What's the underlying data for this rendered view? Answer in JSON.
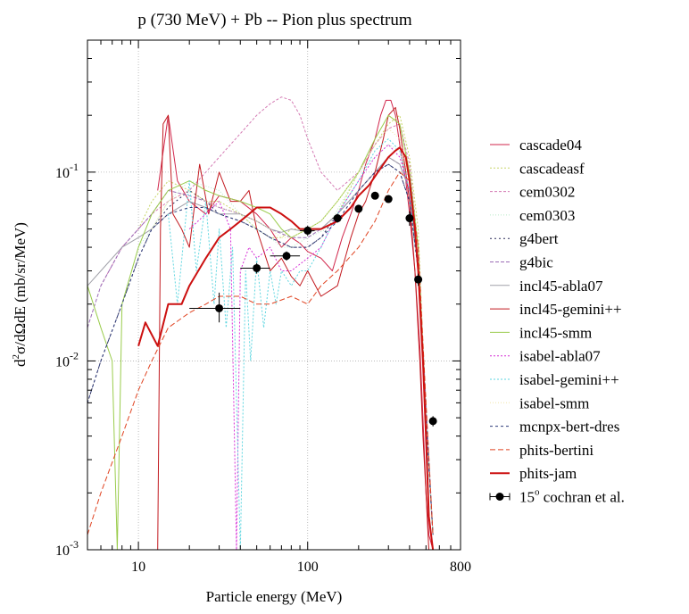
{
  "chart_data": {
    "type": "line",
    "title": "p (730 MeV) + Pb -- Pion plus spectrum",
    "xlabel": "Particle energy (MeV)",
    "ylabel_parts": {
      "base": "d",
      "exp": "2",
      "rest": "σ/dΩdE (mb/sr/MeV)"
    },
    "xscale": "log",
    "yscale": "log",
    "xlim": [
      5,
      800
    ],
    "ylim": [
      0.001,
      0.5
    ],
    "x_ticks": [
      {
        "value": 10,
        "label": "10"
      },
      {
        "value": 100,
        "label": "100"
      },
      {
        "value": 800,
        "label": "800"
      }
    ],
    "y_ticks": [
      {
        "value": 0.001,
        "base": "10",
        "exp": "-3"
      },
      {
        "value": 0.01,
        "base": "10",
        "exp": "-2"
      },
      {
        "value": 0.1,
        "base": "10",
        "exp": "-1"
      }
    ],
    "grid": true,
    "legend_position": "outside-right",
    "series": [
      {
        "name": "cascade04",
        "color": "#d1264b",
        "width": 1,
        "dash": "",
        "x": [
          13,
          15,
          17,
          20,
          25,
          30,
          40,
          50,
          60,
          70,
          80,
          90,
          100,
          120,
          140,
          160,
          180,
          200,
          220,
          250,
          270,
          290,
          310,
          330,
          350,
          380,
          400,
          430,
          460,
          480,
          500,
          520,
          550
        ],
        "y": [
          0.08,
          0.2,
          0.09,
          0.07,
          0.06,
          0.075,
          0.07,
          0.06,
          0.05,
          0.04,
          0.045,
          0.042,
          0.038,
          0.035,
          0.03,
          0.045,
          0.06,
          0.08,
          0.11,
          0.15,
          0.2,
          0.24,
          0.24,
          0.2,
          0.14,
          0.09,
          0.06,
          0.03,
          0.012,
          0.005,
          0.002,
          0.0012,
          0.001
        ]
      },
      {
        "name": "cascadeasf",
        "color": "#c8d66a",
        "width": 1,
        "dash": "2,2",
        "x": [
          10,
          12,
          15,
          20,
          25,
          30,
          40,
          50,
          60,
          70,
          80,
          100,
          120,
          150,
          200,
          250,
          300,
          350,
          400,
          450,
          500,
          550
        ],
        "y": [
          0.05,
          0.07,
          0.09,
          0.08,
          0.07,
          0.07,
          0.06,
          0.05,
          0.045,
          0.045,
          0.05,
          0.05,
          0.05,
          0.06,
          0.1,
          0.14,
          0.18,
          0.2,
          0.12,
          0.05,
          0.005,
          0.0012
        ]
      },
      {
        "name": "cem0302",
        "color": "#d47ab3",
        "width": 1,
        "dash": "3,2",
        "x": [
          6,
          8,
          10,
          12,
          15,
          20,
          25,
          30,
          40,
          50,
          60,
          70,
          80,
          90,
          100,
          120,
          150,
          200,
          250,
          300,
          350,
          400,
          450,
          500,
          550
        ],
        "y": [
          0.025,
          0.04,
          0.05,
          0.06,
          0.07,
          0.08,
          0.1,
          0.12,
          0.16,
          0.2,
          0.23,
          0.25,
          0.24,
          0.2,
          0.15,
          0.1,
          0.08,
          0.1,
          0.14,
          0.17,
          0.18,
          0.11,
          0.04,
          0.005,
          0.0012
        ]
      },
      {
        "name": "cem0303",
        "color": "#b8eac8",
        "width": 1,
        "dash": "1,2",
        "x": [
          8,
          10,
          12,
          15,
          20,
          30,
          40,
          50,
          60,
          70,
          80,
          100,
          130,
          160,
          200,
          250,
          300,
          350,
          400,
          450,
          500,
          550
        ],
        "y": [
          0.02,
          0.04,
          0.05,
          0.07,
          0.09,
          0.08,
          0.06,
          0.05,
          0.045,
          0.04,
          0.04,
          0.045,
          0.05,
          0.07,
          0.1,
          0.12,
          0.14,
          0.13,
          0.09,
          0.04,
          0.006,
          0.0012
        ]
      },
      {
        "name": "g4bert",
        "color": "#2c2c5a",
        "width": 1,
        "dash": "2,3",
        "x": [
          5,
          6,
          8,
          10,
          12,
          15,
          20,
          25,
          30,
          40,
          50,
          60,
          80,
          100,
          120,
          150,
          200,
          250,
          300,
          350,
          400,
          450,
          500,
          550
        ],
        "y": [
          0.006,
          0.01,
          0.02,
          0.035,
          0.05,
          0.065,
          0.08,
          0.07,
          0.06,
          0.055,
          0.05,
          0.045,
          0.04,
          0.04,
          0.045,
          0.06,
          0.08,
          0.1,
          0.11,
          0.1,
          0.07,
          0.03,
          0.005,
          0.0012
        ]
      },
      {
        "name": "g4bic",
        "color": "#9b6bb6",
        "width": 1,
        "dash": "4,2",
        "x": [
          5,
          6,
          8,
          10,
          12,
          15,
          20,
          25,
          30,
          40,
          50,
          60,
          80,
          100,
          120,
          150,
          200,
          250,
          300,
          350,
          400,
          450,
          500,
          550
        ],
        "y": [
          0.015,
          0.025,
          0.04,
          0.05,
          0.06,
          0.08,
          0.075,
          0.07,
          0.065,
          0.06,
          0.055,
          0.05,
          0.045,
          0.045,
          0.05,
          0.06,
          0.08,
          0.1,
          0.12,
          0.11,
          0.08,
          0.035,
          0.006,
          0.0012
        ]
      },
      {
        "name": "incl45-abla07",
        "color": "#a0a0a8",
        "width": 1,
        "dash": "",
        "x": [
          5,
          6,
          8,
          10,
          12,
          15,
          20,
          25,
          30,
          40,
          50,
          60,
          70,
          80,
          100,
          120,
          150,
          200,
          250,
          300,
          350,
          400,
          450,
          500,
          550
        ],
        "y": [
          0.025,
          0.03,
          0.04,
          0.045,
          0.05,
          0.06,
          0.07,
          0.065,
          0.06,
          0.06,
          0.055,
          0.05,
          0.048,
          0.05,
          0.048,
          0.05,
          0.06,
          0.08,
          0.1,
          0.12,
          0.11,
          0.08,
          0.03,
          0.005,
          0.0012
        ]
      },
      {
        "name": "incl45-gemini++",
        "color": "#c2191f",
        "width": 1,
        "dash": "",
        "x": [
          13,
          13.5,
          14,
          15,
          16,
          18,
          20,
          23,
          26,
          30,
          35,
          40,
          45,
          50,
          60,
          70,
          80,
          90,
          100,
          120,
          150,
          180,
          200,
          220,
          250,
          280,
          300,
          330,
          350,
          380,
          400,
          430,
          460,
          480,
          500,
          520,
          550
        ],
        "y": [
          0.001,
          0.05,
          0.18,
          0.2,
          0.06,
          0.05,
          0.04,
          0.11,
          0.06,
          0.1,
          0.07,
          0.07,
          0.08,
          0.05,
          0.03,
          0.035,
          0.028,
          0.025,
          0.03,
          0.022,
          0.025,
          0.045,
          0.06,
          0.07,
          0.1,
          0.15,
          0.2,
          0.22,
          0.17,
          0.1,
          0.07,
          0.03,
          0.01,
          0.004,
          0.002,
          0.001,
          0.001
        ]
      },
      {
        "name": "incl45-smm",
        "color": "#9acc4c",
        "width": 1,
        "dash": "",
        "x": [
          5,
          6,
          7,
          7.5,
          8,
          10,
          12,
          15,
          20,
          25,
          30,
          40,
          50,
          60,
          70,
          80,
          100,
          120,
          150,
          200,
          250,
          300,
          350,
          400,
          450,
          500,
          550
        ],
        "y": [
          0.025,
          0.015,
          0.01,
          0.001,
          0.02,
          0.04,
          0.06,
          0.08,
          0.09,
          0.08,
          0.075,
          0.07,
          0.065,
          0.06,
          0.05,
          0.045,
          0.05,
          0.055,
          0.07,
          0.1,
          0.15,
          0.2,
          0.18,
          0.1,
          0.04,
          0.005,
          0.0012
        ]
      },
      {
        "name": "isabel-abla07",
        "color": "#d62ed6",
        "width": 1,
        "dash": "2,2",
        "x": [
          20,
          25,
          30,
          35,
          38,
          40,
          45,
          50,
          60,
          70,
          80,
          100,
          120,
          150,
          200,
          250,
          300,
          350,
          400,
          450,
          500,
          550
        ],
        "y": [
          0.05,
          0.06,
          0.07,
          0.05,
          0.001,
          0.03,
          0.04,
          0.035,
          0.04,
          0.03,
          0.03,
          0.035,
          0.04,
          0.06,
          0.09,
          0.12,
          0.14,
          0.12,
          0.08,
          0.035,
          0.005,
          0.0012
        ]
      },
      {
        "name": "isabel-gemini++",
        "color": "#5ed6e0",
        "width": 1,
        "dash": "2,2",
        "x": [
          15,
          17,
          20,
          22,
          25,
          28,
          30,
          33,
          36,
          40,
          43,
          46,
          50,
          55,
          60,
          65,
          70,
          80,
          90,
          100,
          120,
          150,
          200,
          250,
          300,
          350,
          400,
          450,
          500,
          550
        ],
        "y": [
          0.06,
          0.02,
          0.09,
          0.03,
          0.07,
          0.02,
          0.05,
          0.015,
          0.04,
          0.001,
          0.03,
          0.01,
          0.035,
          0.015,
          0.03,
          0.02,
          0.03,
          0.025,
          0.03,
          0.03,
          0.04,
          0.06,
          0.09,
          0.13,
          0.15,
          0.13,
          0.08,
          0.03,
          0.005,
          0.0012
        ]
      },
      {
        "name": "isabel-smm",
        "color": "#f2e6a8",
        "width": 1,
        "dash": "1,2",
        "x": [
          12,
          15,
          20,
          25,
          30,
          40,
          50,
          60,
          70,
          80,
          100,
          120,
          150,
          200,
          250,
          300,
          350,
          400,
          450,
          500,
          550
        ],
        "y": [
          0.05,
          0.07,
          0.08,
          0.07,
          0.065,
          0.06,
          0.055,
          0.05,
          0.045,
          0.045,
          0.05,
          0.055,
          0.07,
          0.1,
          0.14,
          0.17,
          0.15,
          0.09,
          0.035,
          0.005,
          0.0012
        ]
      },
      {
        "name": "mcnpx-bert-dres",
        "color": "#2d3a7a",
        "width": 1,
        "dash": "3,3",
        "x": [
          5,
          6,
          8,
          10,
          12,
          15,
          20,
          25,
          30,
          40,
          50,
          60,
          80,
          100,
          120,
          150,
          200,
          250,
          300,
          350,
          400,
          450,
          500,
          550
        ],
        "y": [
          0.006,
          0.01,
          0.02,
          0.035,
          0.05,
          0.06,
          0.065,
          0.065,
          0.06,
          0.055,
          0.05,
          0.045,
          0.04,
          0.04,
          0.045,
          0.055,
          0.08,
          0.1,
          0.11,
          0.1,
          0.07,
          0.03,
          0.005,
          0.0012
        ]
      },
      {
        "name": "phits-bertini",
        "color": "#e04422",
        "width": 1,
        "dash": "6,3",
        "x": [
          5,
          6,
          8,
          10,
          12,
          15,
          20,
          25,
          30,
          40,
          50,
          60,
          80,
          100,
          120,
          150,
          200,
          250,
          300,
          350,
          400,
          450,
          500,
          550
        ],
        "y": [
          0.0012,
          0.002,
          0.004,
          0.007,
          0.01,
          0.015,
          0.018,
          0.02,
          0.022,
          0.022,
          0.02,
          0.02,
          0.022,
          0.02,
          0.025,
          0.03,
          0.04,
          0.055,
          0.08,
          0.1,
          0.09,
          0.04,
          0.006,
          0.0012
        ]
      },
      {
        "name": "phits-jam",
        "color": "#cc1010",
        "width": 2,
        "dash": "",
        "x": [
          10,
          11,
          13,
          15,
          18,
          20,
          25,
          30,
          35,
          40,
          45,
          50,
          55,
          60,
          70,
          80,
          90,
          100,
          120,
          150,
          180,
          200,
          230,
          260,
          300,
          330,
          350,
          380,
          400,
          430,
          450,
          480,
          500,
          520,
          550
        ],
        "y": [
          0.012,
          0.016,
          0.012,
          0.02,
          0.02,
          0.025,
          0.035,
          0.045,
          0.05,
          0.055,
          0.06,
          0.065,
          0.065,
          0.065,
          0.06,
          0.055,
          0.05,
          0.05,
          0.05,
          0.055,
          0.065,
          0.075,
          0.085,
          0.1,
          0.12,
          0.13,
          0.135,
          0.12,
          0.09,
          0.05,
          0.03,
          0.01,
          0.004,
          0.0015,
          0.001
        ]
      }
    ],
    "data_points": {
      "name_prefix": "15",
      "name_sup": "o",
      "name_suffix": " cochran et al.",
      "color": "#000000",
      "points": [
        {
          "x": 30,
          "y": 0.019,
          "xerr": [
            20,
            40
          ],
          "yerr": [
            0.016,
            0.023
          ]
        },
        {
          "x": 50,
          "y": 0.031,
          "xerr": [
            40,
            60
          ],
          "yerr": [
            0.029,
            0.033
          ]
        },
        {
          "x": 75,
          "y": 0.036,
          "xerr": [
            60,
            90
          ],
          "yerr": [
            0.034,
            0.038
          ]
        },
        {
          "x": 100,
          "y": 0.049,
          "xerr": [
            90,
            110
          ],
          "yerr": [
            0.046,
            0.052
          ]
        },
        {
          "x": 150,
          "y": 0.057,
          "xerr": [
            140,
            160
          ],
          "yerr": [
            0.054,
            0.06
          ]
        },
        {
          "x": 200,
          "y": 0.064,
          "xerr": [
            190,
            210
          ],
          "yerr": [
            0.061,
            0.067
          ]
        },
        {
          "x": 250,
          "y": 0.075,
          "xerr": [
            240,
            260
          ],
          "yerr": [
            0.072,
            0.078
          ]
        },
        {
          "x": 300,
          "y": 0.072,
          "xerr": [
            290,
            310
          ],
          "yerr": [
            0.069,
            0.075
          ]
        },
        {
          "x": 400,
          "y": 0.057,
          "xerr": [
            390,
            410
          ],
          "yerr": [
            0.052,
            0.062
          ]
        },
        {
          "x": 450,
          "y": 0.027,
          "xerr": [
            440,
            460
          ],
          "yerr": [
            0.025,
            0.029
          ]
        },
        {
          "x": 550,
          "y": 0.0048,
          "xerr": [
            540,
            560
          ],
          "yerr": [
            0.0045,
            0.0051
          ]
        }
      ]
    }
  }
}
